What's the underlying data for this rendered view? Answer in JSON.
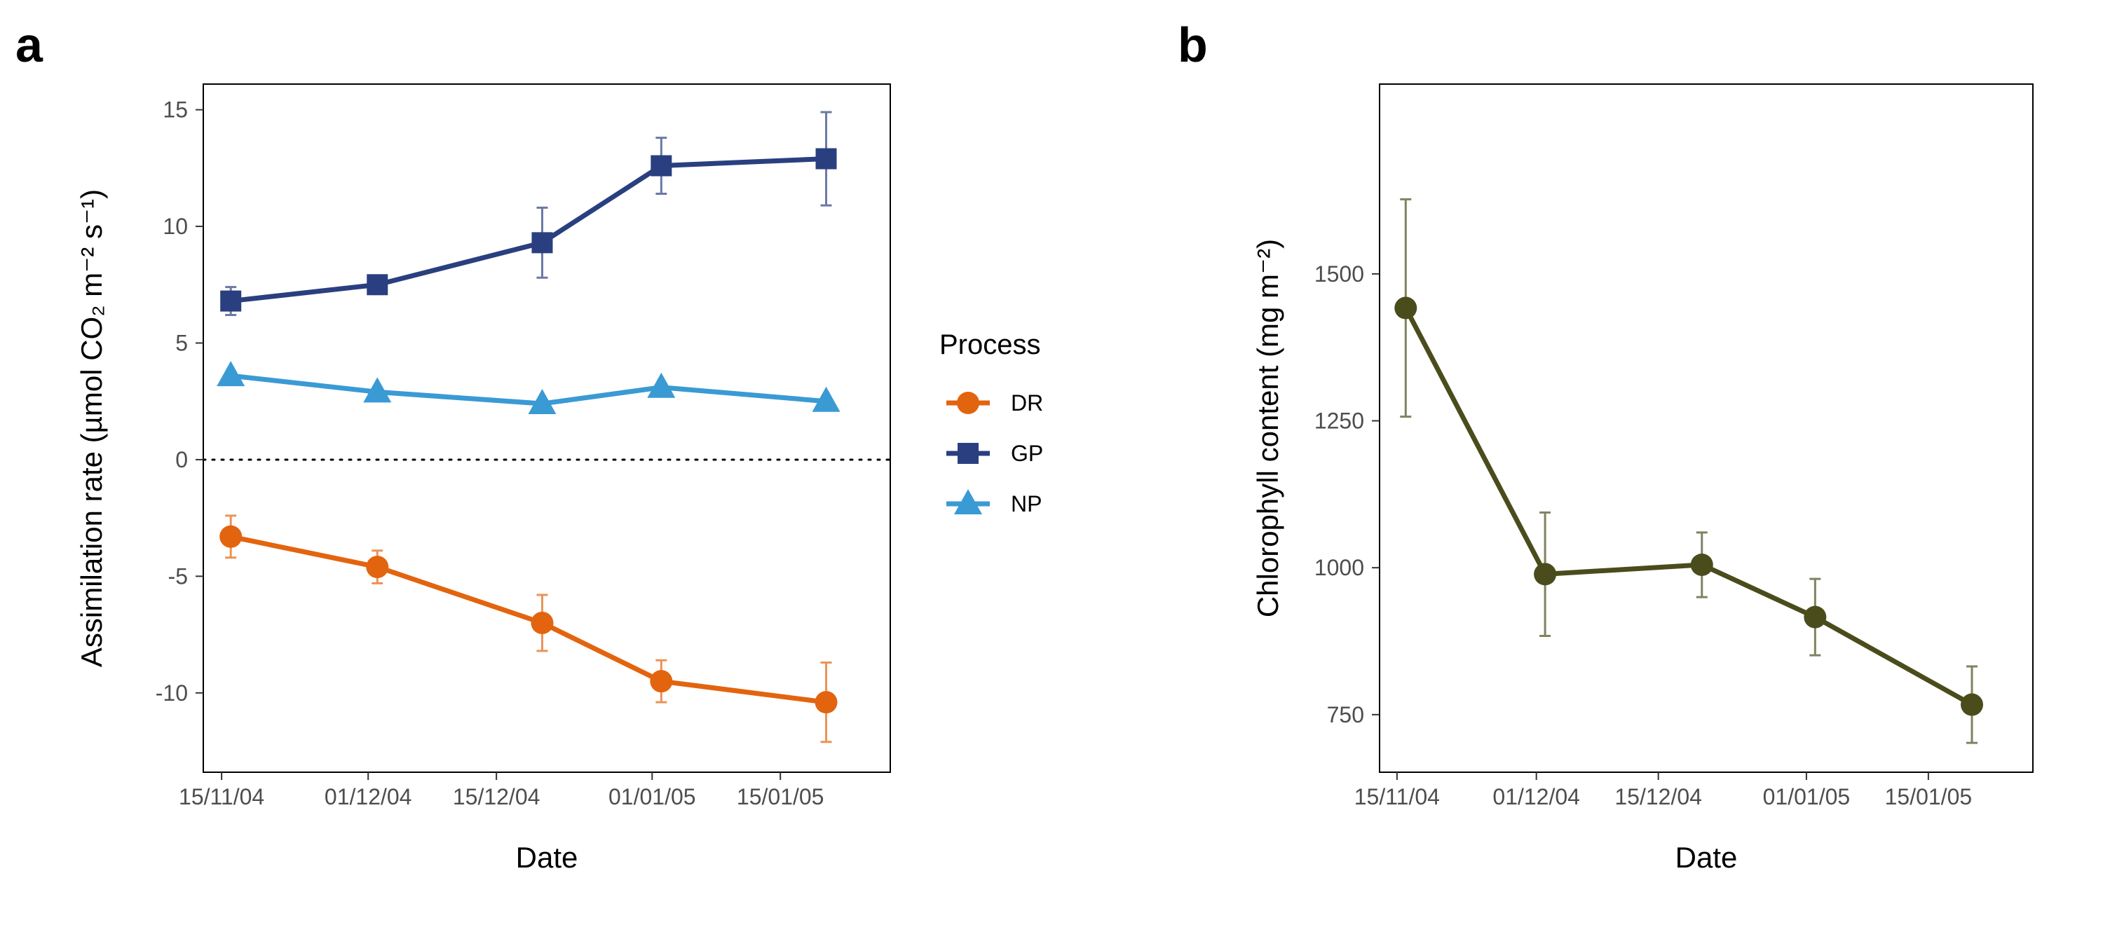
{
  "panels": [
    {
      "letter": "a"
    },
    {
      "letter": "b"
    }
  ],
  "legend": {
    "title": "Process",
    "entries": [
      {
        "label": "DR",
        "color": "#E3640F",
        "marker": "circle"
      },
      {
        "label": "GP",
        "color": "#2A3F7F",
        "marker": "square"
      },
      {
        "label": "NP",
        "color": "#3A9AD4",
        "marker": "triangle"
      }
    ]
  },
  "chart_data": [
    {
      "type": "line",
      "panel": "a",
      "xlabel": "Date",
      "ylabel": "Assimilation rate (µmol CO₂ m⁻² s⁻¹)",
      "x_ticks": [
        "15/11/04",
        "01/12/04",
        "15/12/04",
        "01/01/05",
        "15/01/05"
      ],
      "x": [
        "2004-11-16",
        "2004-12-02",
        "2004-12-20",
        "2005-01-02",
        "2005-01-20"
      ],
      "xlim": [
        "2004-11-13",
        "2005-01-27"
      ],
      "y_ticks": [
        15,
        10,
        5,
        0,
        -5,
        -10
      ],
      "ylim": [
        -13.4,
        16.1
      ],
      "reference_line": {
        "y": 0,
        "style": "dotted"
      },
      "series": [
        {
          "name": "DR",
          "color": "#E3640F",
          "marker": "circle",
          "values": [
            -3.3,
            -4.6,
            -7.0,
            -9.5,
            -10.4
          ],
          "error": [
            0.9,
            0.7,
            1.2,
            0.9,
            1.7
          ]
        },
        {
          "name": "GP",
          "color": "#2A3F7F",
          "marker": "square",
          "values": [
            6.8,
            7.5,
            9.3,
            12.6,
            12.9
          ],
          "error": [
            0.6,
            0.4,
            1.5,
            1.2,
            2.0
          ]
        },
        {
          "name": "NP",
          "color": "#3A9AD4",
          "marker": "triangle",
          "values": [
            3.6,
            2.9,
            2.4,
            3.1,
            2.5
          ],
          "error": [
            0.0,
            0.0,
            0.0,
            0.0,
            0.0
          ]
        }
      ]
    },
    {
      "type": "line",
      "panel": "b",
      "xlabel": "Date",
      "ylabel": "Chlorophyll content (mg m⁻²)",
      "x_ticks": [
        "15/11/04",
        "01/12/04",
        "15/12/04",
        "01/01/05",
        "15/01/05"
      ],
      "x": [
        "2004-11-16",
        "2004-12-02",
        "2004-12-20",
        "2005-01-02",
        "2005-01-20"
      ],
      "xlim": [
        "2004-11-13",
        "2005-01-27"
      ],
      "y_ticks": [
        1500,
        1250,
        1000,
        750
      ],
      "ylim": [
        652,
        1823
      ],
      "series": [
        {
          "color": "#4A4C1C",
          "marker": "circle",
          "values": [
            1442,
            989,
            1005,
            916,
            767
          ],
          "error": [
            185,
            105,
            55,
            65,
            65
          ]
        }
      ]
    }
  ]
}
